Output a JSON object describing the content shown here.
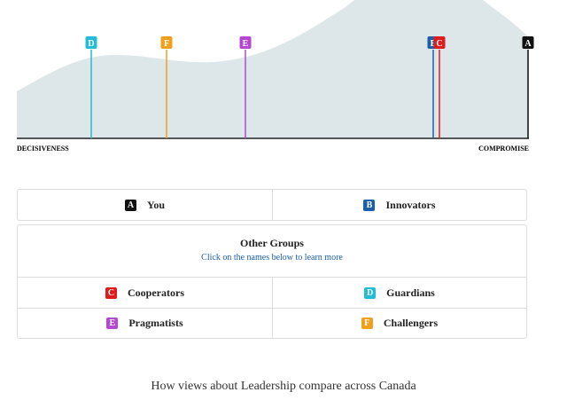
{
  "chart": {
    "markers": [
      {
        "letter": "D",
        "color": "#22bcd6"
      },
      {
        "letter": "F",
        "color": "#f0a01c"
      },
      {
        "letter": "E",
        "color": "#b548d0"
      },
      {
        "letter": "B",
        "color": "#1a5fa8"
      },
      {
        "letter": "C",
        "color": "#e01b1b"
      },
      {
        "letter": "A",
        "color": "#111111"
      }
    ],
    "axis": {
      "left": "DECISIVENESS",
      "right": "COMPROMISE"
    }
  },
  "main_groups": [
    {
      "letter": "A",
      "name": "You",
      "color": "#111111"
    },
    {
      "letter": "B",
      "name": "Innovators",
      "color": "#1a5fa8"
    }
  ],
  "other_groups": {
    "title": "Other Groups",
    "link": "Click on the names below to learn more",
    "groups": [
      {
        "letter": "C",
        "name": "Cooperators",
        "color": "#e01b1b"
      },
      {
        "letter": "D",
        "name": "Guardians",
        "color": "#22bcd6"
      },
      {
        "letter": "E",
        "name": "Pragmatists",
        "color": "#b548d0"
      },
      {
        "letter": "F",
        "name": "Challengers",
        "color": "#f0a01c"
      }
    ]
  },
  "footer": "How views about Leadership compare across Canada"
}
